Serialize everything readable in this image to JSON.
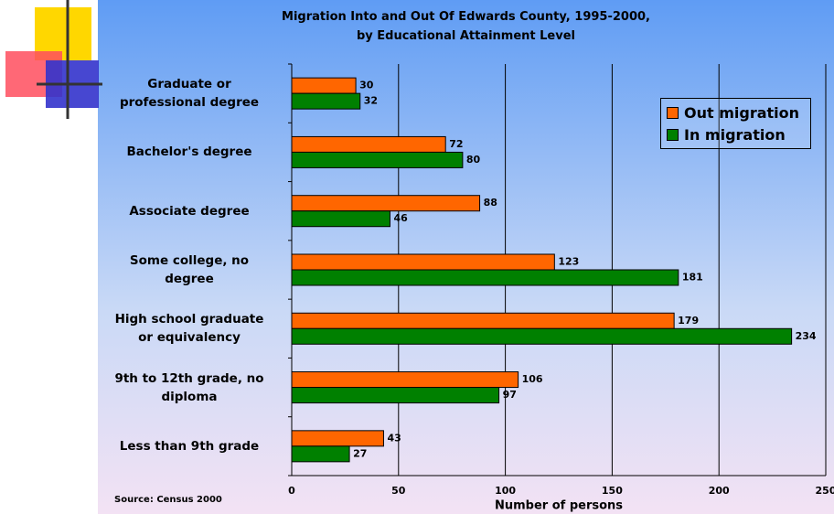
{
  "chart_data": {
    "type": "hbar",
    "title": "Migration Into and Out Of Edwards County, 1995-2000,\nby Educational Attainment Level",
    "categories": [
      "Graduate or\nprofessional degree",
      "Bachelor's degree",
      "Associate degree",
      "Some college, no\ndegree",
      "High school graduate\nor equivalency",
      "9th to 12th grade, no\ndiploma",
      "Less than 9th grade"
    ],
    "series": [
      {
        "name": "Out migration",
        "color": "#ff6600",
        "values": [
          30,
          72,
          88,
          123,
          179,
          106,
          43
        ]
      },
      {
        "name": "In migration",
        "color": "#008000",
        "values": [
          32,
          80,
          46,
          181,
          234,
          97,
          27
        ]
      }
    ],
    "xlim": [
      0,
      250
    ],
    "xticks": [
      0,
      50,
      100,
      150,
      200,
      250
    ],
    "xlabel": "Number of persons",
    "source": "Source: Census 2000",
    "grid": true,
    "legend": "top-right"
  }
}
